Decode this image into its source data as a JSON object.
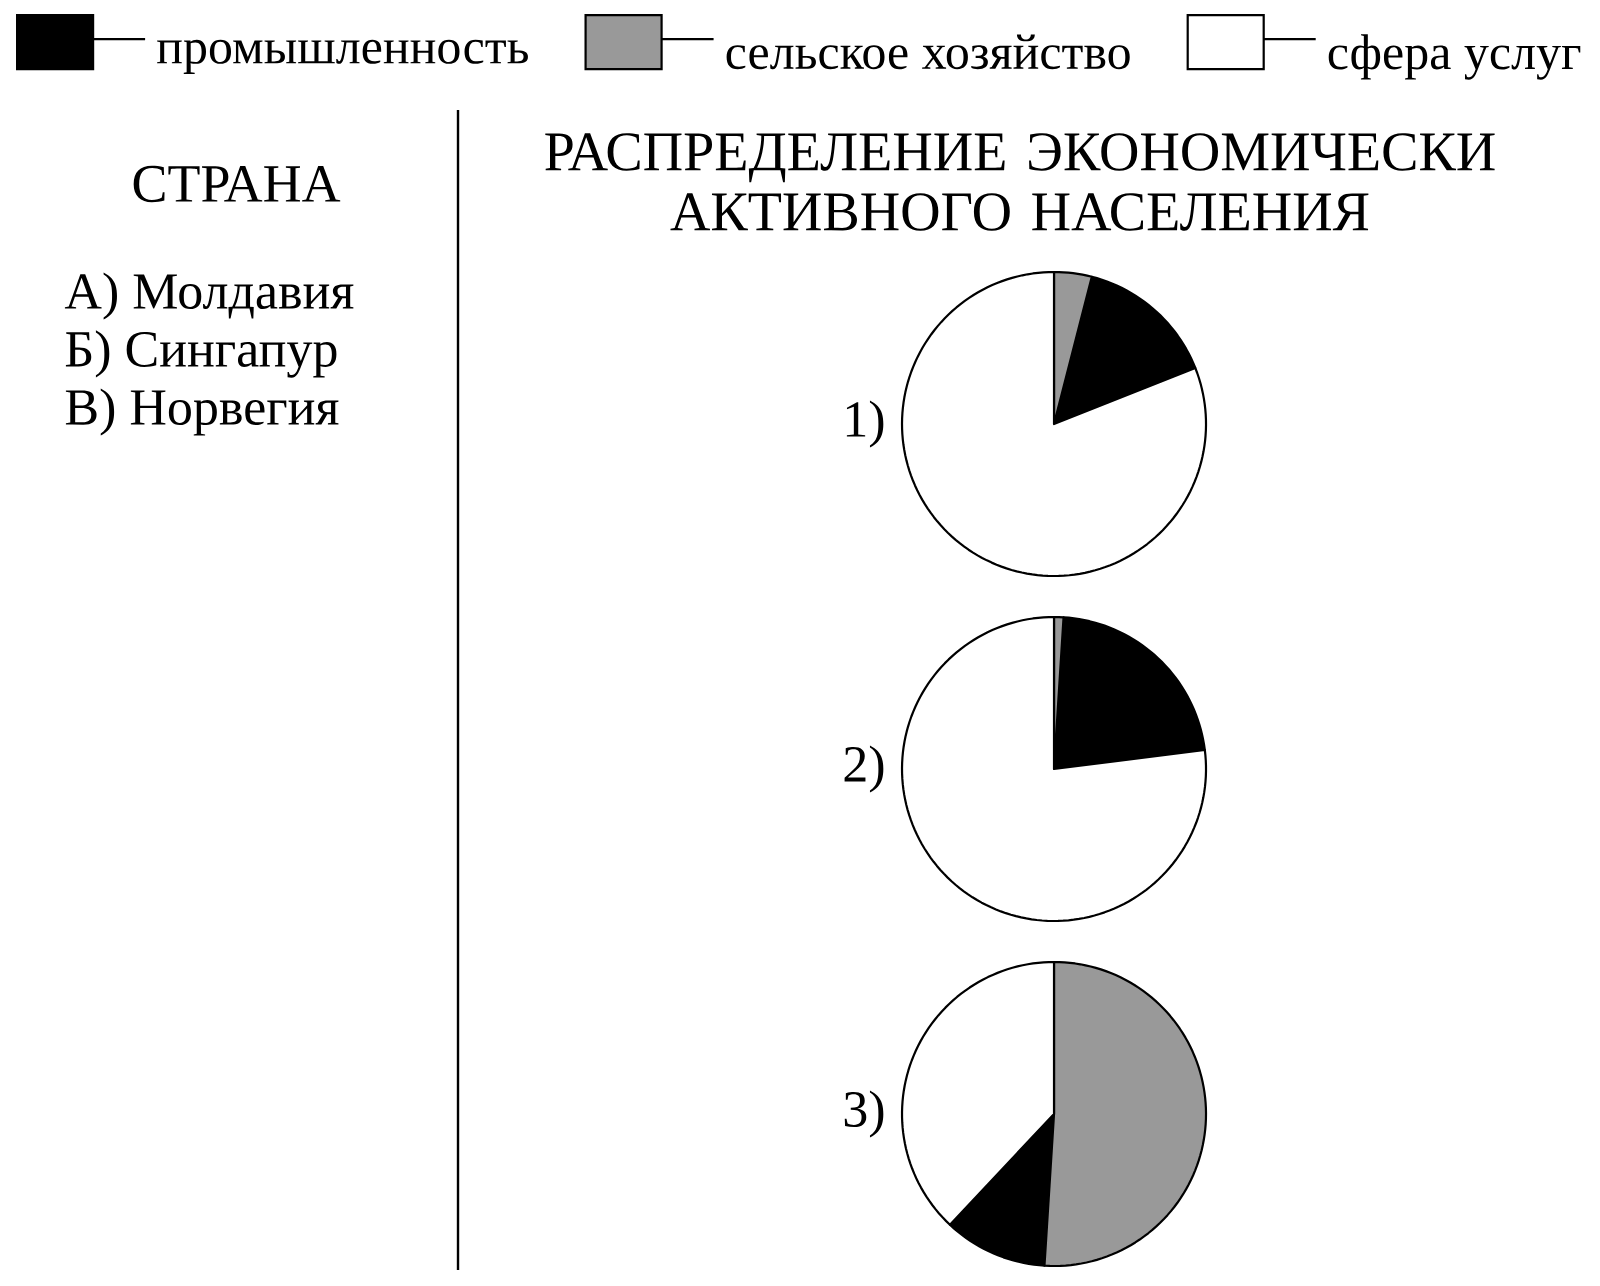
{
  "chart_data": {
    "type": "pie",
    "title": "РАСПРЕДЕЛЕНИЕ ЭКОНОМИЧЕСКИ АКТИВНОГО НАСЕЛЕНИЯ",
    "categories": [
      "промышленность",
      "сельское хозяйство",
      "сфера услуг"
    ],
    "colors": [
      "#000000",
      "#999999",
      "#ffffff"
    ],
    "series": [
      {
        "name": "1)",
        "values": [
          15,
          4,
          81
        ]
      },
      {
        "name": "2)",
        "values": [
          22,
          1,
          77
        ]
      },
      {
        "name": "3)",
        "values": [
          11,
          51,
          38
        ]
      }
    ],
    "legend": "top",
    "annotations": [
      "СТРАНА",
      "А) Молдавия",
      "Б) Сингапур",
      "В) Норвегия"
    ]
  }
}
